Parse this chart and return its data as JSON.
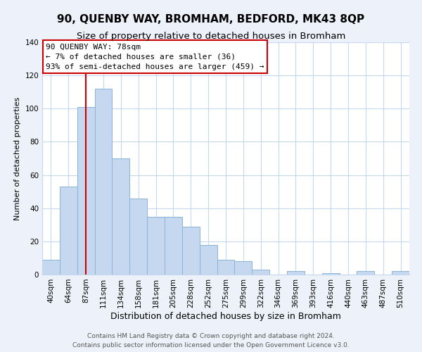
{
  "title": "90, QUENBY WAY, BROMHAM, BEDFORD, MK43 8QP",
  "subtitle": "Size of property relative to detached houses in Bromham",
  "xlabel": "Distribution of detached houses by size in Bromham",
  "ylabel": "Number of detached properties",
  "bar_color": "#c5d8f0",
  "bar_edge_color": "#8ab4d8",
  "categories": [
    "40sqm",
    "64sqm",
    "87sqm",
    "111sqm",
    "134sqm",
    "158sqm",
    "181sqm",
    "205sqm",
    "228sqm",
    "252sqm",
    "275sqm",
    "299sqm",
    "322sqm",
    "346sqm",
    "369sqm",
    "393sqm",
    "416sqm",
    "440sqm",
    "463sqm",
    "487sqm",
    "510sqm"
  ],
  "values": [
    9,
    53,
    101,
    112,
    70,
    46,
    35,
    35,
    29,
    18,
    9,
    8,
    3,
    0,
    2,
    0,
    1,
    0,
    2,
    0,
    2
  ],
  "ylim": [
    0,
    140
  ],
  "yticks": [
    0,
    20,
    40,
    60,
    80,
    100,
    120,
    140
  ],
  "marker_idx": 2,
  "marker_label": "90 QUENBY WAY: 78sqm",
  "annotation_line1": "← 7% of detached houses are smaller (36)",
  "annotation_line2": "93% of semi-detached houses are larger (459) →",
  "annotation_box_color": "#ffffff",
  "annotation_box_edge": "#cc0000",
  "marker_line_color": "#cc0000",
  "footer_line1": "Contains HM Land Registry data © Crown copyright and database right 2024.",
  "footer_line2": "Contains public sector information licensed under the Open Government Licence v3.0.",
  "background_color": "#edf2fa",
  "plot_bg_color": "#ffffff",
  "grid_color": "#c5d8f0",
  "title_fontsize": 11,
  "subtitle_fontsize": 9.5,
  "xlabel_fontsize": 9,
  "ylabel_fontsize": 8,
  "tick_fontsize": 7.5,
  "footer_fontsize": 6.5,
  "annotation_fontsize": 8
}
